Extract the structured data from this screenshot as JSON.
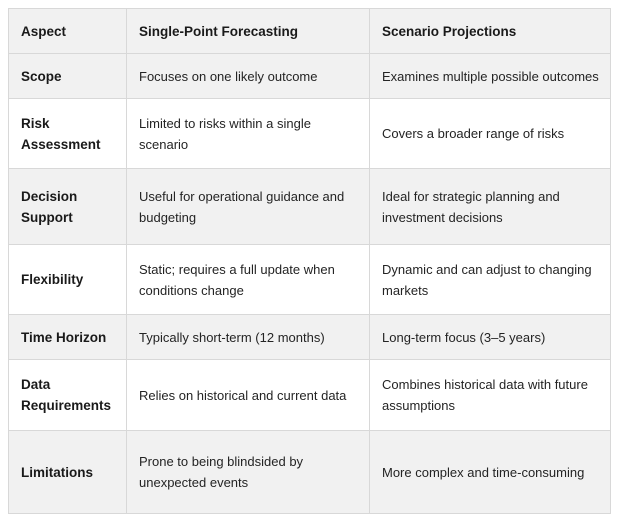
{
  "table": {
    "columns": [
      "Aspect",
      "Single-Point Forecasting",
      "Scenario Projections"
    ],
    "rows": [
      {
        "aspect": "Scope",
        "single_point": "Focuses on one likely outcome",
        "scenario": "Examines multiple possible outcomes"
      },
      {
        "aspect": "Risk Assessment",
        "single_point": "Limited to risks within a single scenario",
        "scenario": "Covers a broader range of risks"
      },
      {
        "aspect": "Decision Support",
        "single_point": "Useful for operational guidance and budgeting",
        "scenario": "Ideal for strategic planning and investment decisions"
      },
      {
        "aspect": "Flexibility",
        "single_point": "Static; requires a full update when conditions change",
        "scenario": "Dynamic and can adjust to changing markets"
      },
      {
        "aspect": "Time Horizon",
        "single_point": "Typically short-term (12 months)",
        "scenario": "Long-term focus (3–5 years)"
      },
      {
        "aspect": "Data Requirements",
        "single_point": "Relies on historical and current data",
        "scenario": "Combines historical data with future assumptions"
      },
      {
        "aspect": "Limitations",
        "single_point": "Prone to being blindsided by unexpected events",
        "scenario": "More complex and time-consuming"
      }
    ],
    "colors": {
      "stripe_background": "#f1f1f1",
      "border": "#d8d8d8",
      "text": "#242424",
      "label_text": "#1a1a1a",
      "page_background": "#ffffff"
    }
  }
}
